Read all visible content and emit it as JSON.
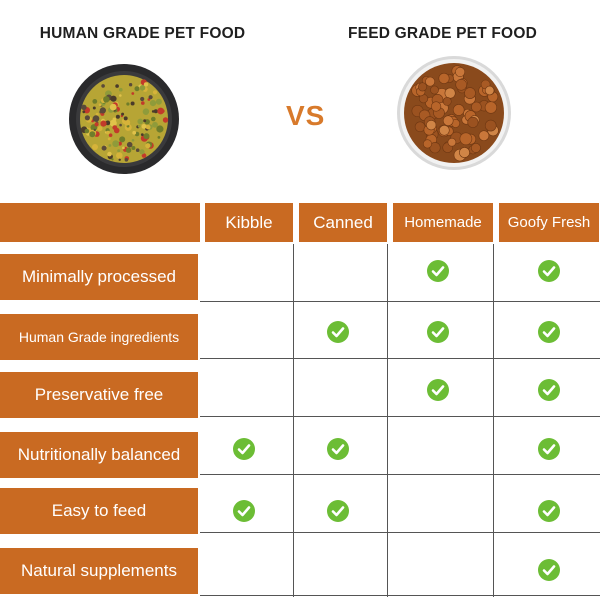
{
  "header": {
    "left_title": "HUMAN GRADE PET FOOD",
    "right_title": "FEED GRADE PET FOOD",
    "vs": "VS"
  },
  "columns": [
    "Kibble",
    "Canned",
    "Homemade",
    "Goofy Fresh"
  ],
  "rows": [
    {
      "label": "Minimally processed",
      "checks": [
        false,
        false,
        true,
        true
      ]
    },
    {
      "label": "Human Grade ingredients",
      "checks": [
        false,
        true,
        true,
        true
      ]
    },
    {
      "label": "Preservative free",
      "checks": [
        false,
        false,
        true,
        true
      ]
    },
    {
      "label": "Nutritionally balanced",
      "checks": [
        true,
        true,
        false,
        true
      ]
    },
    {
      "label": "Easy to feed",
      "checks": [
        true,
        true,
        false,
        true
      ]
    },
    {
      "label": "Natural supplements",
      "checks": [
        false,
        false,
        false,
        true
      ]
    }
  ],
  "icons": {
    "check": "check-circle-icon",
    "bowl_left": "human-food-bowl-icon",
    "bowl_right": "kibble-bowl-icon"
  },
  "colors": {
    "orange_block": "#c96a22",
    "vs_orange": "#d87a2b",
    "check_green": "#6cbd35",
    "grid_line": "#555555"
  }
}
